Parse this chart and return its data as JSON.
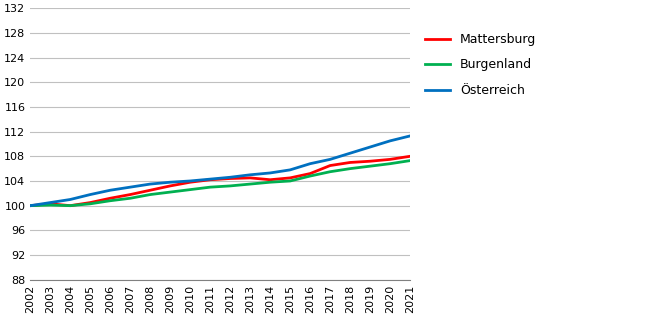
{
  "years": [
    2002,
    2003,
    2004,
    2005,
    2006,
    2007,
    2008,
    2009,
    2010,
    2011,
    2012,
    2013,
    2014,
    2015,
    2016,
    2017,
    2018,
    2019,
    2020,
    2021
  ],
  "mattersburg": [
    100.0,
    100.3,
    100.0,
    100.5,
    101.2,
    101.8,
    102.5,
    103.2,
    103.8,
    104.2,
    104.4,
    104.5,
    104.2,
    104.5,
    105.2,
    106.5,
    107.0,
    107.2,
    107.5,
    108.0
  ],
  "burgenland": [
    100.0,
    100.1,
    100.0,
    100.3,
    100.8,
    101.2,
    101.8,
    102.2,
    102.6,
    103.0,
    103.2,
    103.5,
    103.8,
    104.0,
    104.8,
    105.5,
    106.0,
    106.4,
    106.8,
    107.3
  ],
  "oesterreich": [
    100.0,
    100.5,
    101.0,
    101.8,
    102.5,
    103.0,
    103.5,
    103.8,
    104.0,
    104.3,
    104.6,
    105.0,
    105.3,
    105.8,
    106.8,
    107.5,
    108.5,
    109.5,
    110.5,
    111.3
  ],
  "colors": {
    "mattersburg": "#ff0000",
    "burgenland": "#00b050",
    "oesterreich": "#0070c0"
  },
  "legend_labels": [
    "Mattersburg",
    "Burgenland",
    "Österreich"
  ],
  "ylim": [
    88,
    132
  ],
  "yticks": [
    88,
    92,
    96,
    100,
    104,
    108,
    112,
    116,
    120,
    124,
    128,
    132
  ],
  "grid_color": "#c0c0c0",
  "line_width": 2.0
}
